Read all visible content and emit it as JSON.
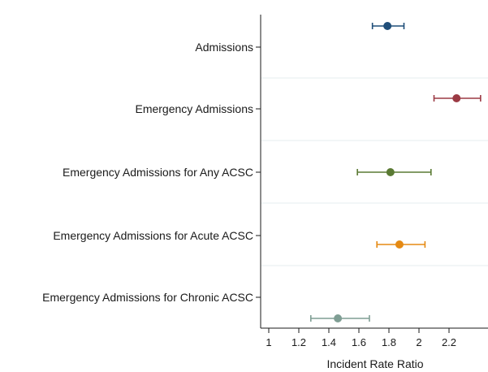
{
  "chart_data": {
    "type": "scatter",
    "subtype": "forest-plot",
    "title": "",
    "xlabel": "Incident Rate Ratio",
    "ylabel": "",
    "xlim": [
      0.95,
      2.45
    ],
    "xticks": [
      1,
      1.2,
      1.4,
      1.6,
      1.8,
      2,
      2.2
    ],
    "xtick_labels": [
      "1",
      "1.2",
      "1.4",
      "1.6",
      "1.8",
      "2",
      "2.2"
    ],
    "grid": true,
    "legend": "none",
    "categories": [
      "Admissions",
      "Emergency Admissions",
      "Emergency Admissions for Any ACSC",
      "Emergency Admissions for Acute ACSC",
      "Emergency Admissions for Chronic ACSC"
    ],
    "points": [
      {
        "estimate": 1.79,
        "lower": 1.69,
        "upper": 1.9,
        "color": "#1f4e79"
      },
      {
        "estimate": 2.25,
        "lower": 2.1,
        "upper": 2.41,
        "color": "#9b3a44"
      },
      {
        "estimate": 1.81,
        "lower": 1.59,
        "upper": 2.08,
        "color": "#5a7a33"
      },
      {
        "estimate": 1.87,
        "lower": 1.72,
        "upper": 2.04,
        "color": "#e58a13"
      },
      {
        "estimate": 1.46,
        "lower": 1.28,
        "upper": 1.67,
        "color": "#7f9e94"
      }
    ]
  }
}
